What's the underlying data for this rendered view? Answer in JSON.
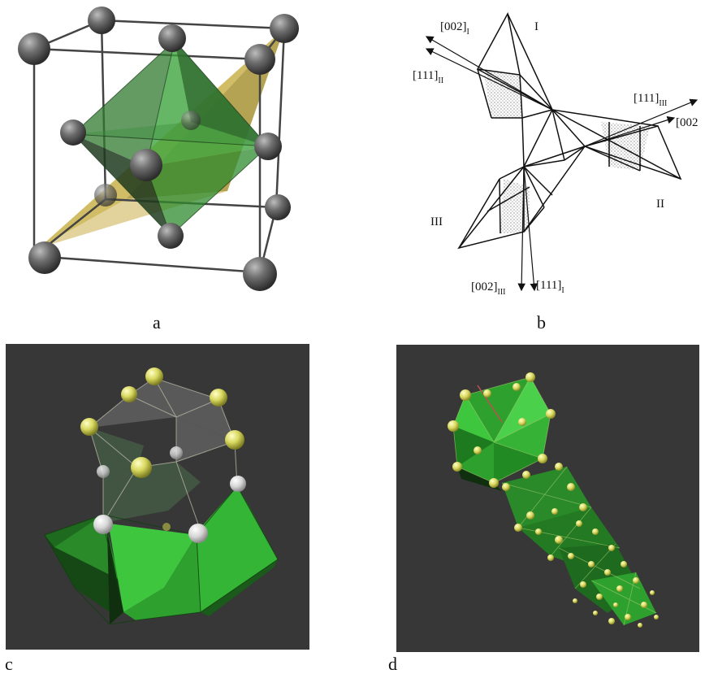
{
  "panels": {
    "a": {
      "caption": "a"
    },
    "b": {
      "caption": "b",
      "roman_labels": [
        "I",
        "II",
        "III"
      ],
      "direction_labels": [
        {
          "main": "[002]",
          "sub": "I"
        },
        {
          "main": "[111]",
          "sub": "II"
        },
        {
          "main": "[111]",
          "sub": "III"
        },
        {
          "main": "[002",
          "sub": ""
        },
        {
          "main": "[002]",
          "sub": "III"
        },
        {
          "main": "[111]",
          "sub": "I"
        }
      ]
    },
    "c": {
      "caption": "c"
    },
    "d": {
      "caption": "d"
    }
  },
  "colors": {
    "atom_gray": "#5f5f5f",
    "atom_yellow": "#e2e27a",
    "atom_white": "#e8e8e8",
    "octahedron_green": "#2f8a2f",
    "tetrahedron_yellow": "#c9b24a",
    "bright_green": "#2fc02f",
    "dark_panel": "#373737"
  }
}
